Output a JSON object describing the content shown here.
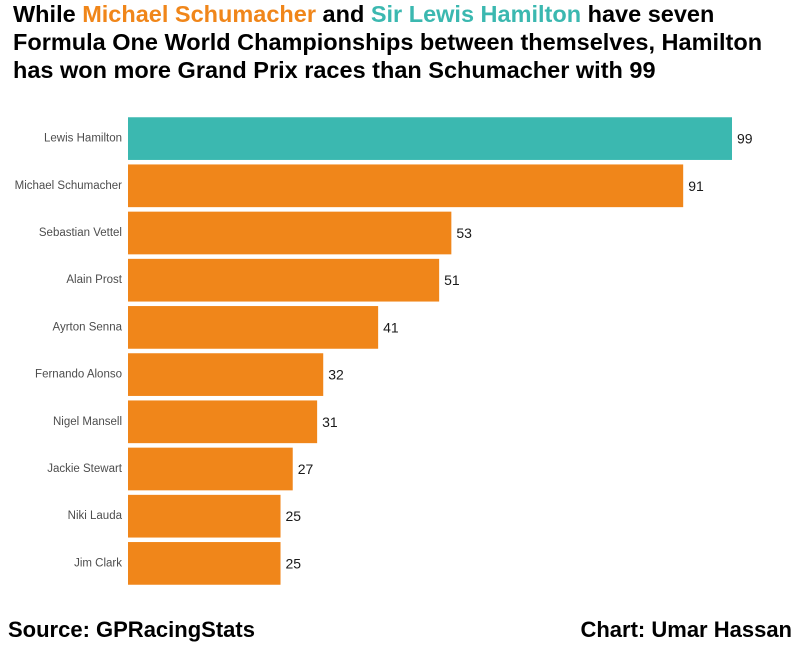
{
  "title": {
    "part1": "While ",
    "highlight1": "Michael Schumacher",
    "part2": " and ",
    "highlight2": "Sir Lewis Hamilton",
    "part3": " have seven Formula One World Championships between themselves, Hamilton has won more Grand Prix races than Schumacher with 99"
  },
  "footer": {
    "source": "Source: GPRacingStats",
    "credit": "Chart: Umar Hassan"
  },
  "colors": {
    "highlight": "#3BB8B0",
    "default": "#F0861A",
    "title_orange": "#F0861A",
    "title_teal": "#3BB8B0"
  },
  "chart_data": {
    "type": "bar",
    "orientation": "horizontal",
    "categories": [
      "Lewis Hamilton",
      "Michael Schumacher",
      "Sebastian Vettel",
      "Alain Prost",
      "Ayrton Senna",
      "Fernando Alonso",
      "Nigel Mansell",
      "Jackie Stewart",
      "Niki Lauda",
      "Jim Clark"
    ],
    "values": [
      99,
      91,
      53,
      51,
      41,
      32,
      31,
      27,
      25,
      25
    ],
    "highlight_index": 0,
    "xlim": [
      0,
      99
    ],
    "grid": false,
    "legend": "none"
  }
}
